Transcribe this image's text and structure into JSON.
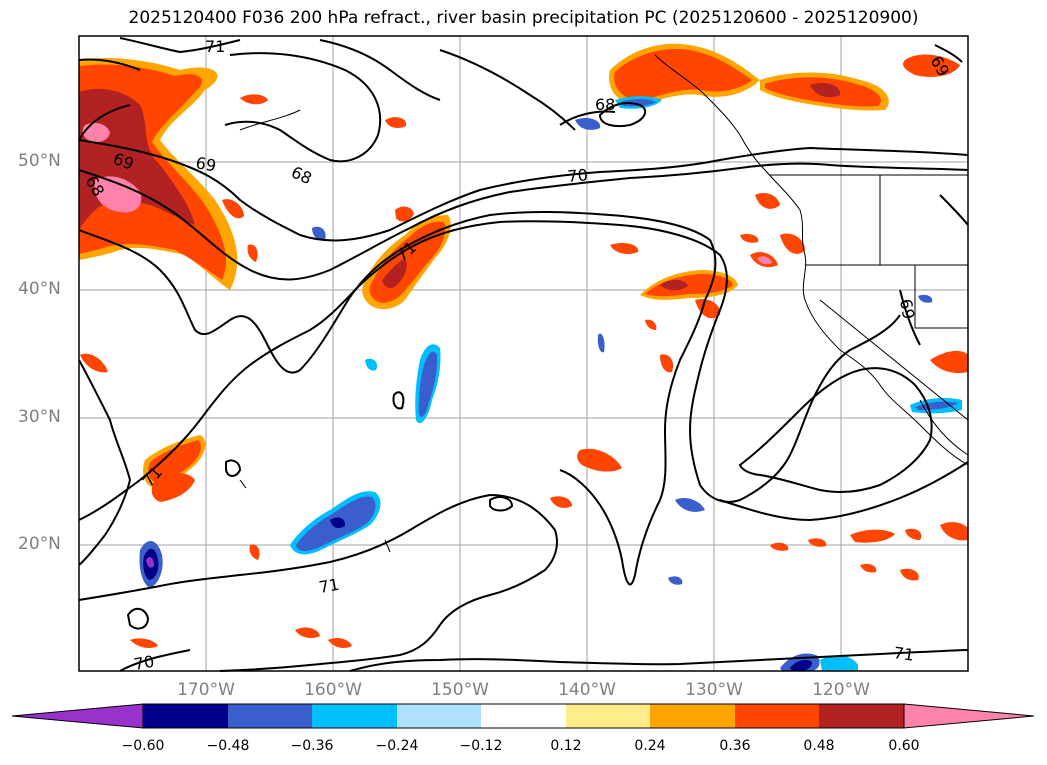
{
  "title": "2025120400 F036 200 hPa refract., river basin precipitation PC (2025120600 - 2025120900)",
  "map": {
    "lat_labels": [
      "50°N",
      "40°N",
      "30°N",
      "20°N"
    ],
    "lon_labels": [
      "170°W",
      "160°W",
      "150°W",
      "140°W",
      "130°W",
      "120°W"
    ],
    "contour_labels": [
      "71",
      "69",
      "68",
      "69",
      "68",
      "68",
      "70",
      "71",
      "69",
      "69",
      "71",
      "71",
      "70",
      "71"
    ]
  },
  "colorbar": {
    "ticks": [
      "−0.60",
      "−0.48",
      "−0.36",
      "−0.24",
      "−0.12",
      "0.12",
      "0.24",
      "0.36",
      "0.48",
      "0.60"
    ],
    "colors": [
      "#9932cc",
      "#00008b",
      "#3a5fcd",
      "#00bfff",
      "#b0e2ff",
      "#ffffff",
      "#ffec8b",
      "#ffa500",
      "#ff4500",
      "#b22222",
      "#ff82ab"
    ]
  },
  "colors": {
    "grid": "#a0a0a0",
    "contour": "#000000",
    "axis_label": "#808080"
  }
}
